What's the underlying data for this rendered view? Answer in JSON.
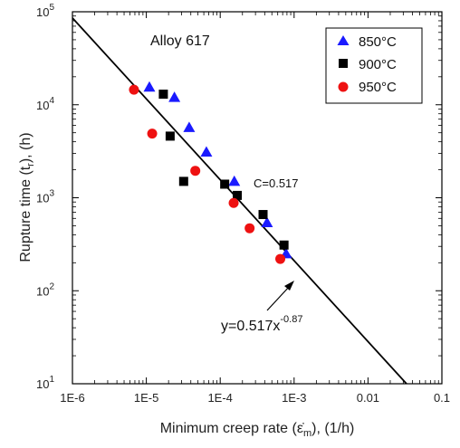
{
  "chart_data": {
    "type": "scatter",
    "x_scale": "log",
    "y_scale": "log",
    "xlim": [
      1e-06,
      0.1
    ],
    "ylim": [
      10,
      100000
    ],
    "x_ticks": [
      {
        "value": 1e-06,
        "label": "1E-6"
      },
      {
        "value": 1e-05,
        "label": "1E-5"
      },
      {
        "value": 0.0001,
        "label": "1E-4"
      },
      {
        "value": 0.001,
        "label": "1E-3"
      },
      {
        "value": 0.01,
        "label": "0.01"
      },
      {
        "value": 0.1,
        "label": "0.1"
      }
    ],
    "y_ticks": [
      {
        "value": 10,
        "base": "10",
        "exp": "1"
      },
      {
        "value": 100,
        "base": "10",
        "exp": "2"
      },
      {
        "value": 1000,
        "base": "10",
        "exp": "3"
      },
      {
        "value": 10000,
        "base": "10",
        "exp": "4"
      },
      {
        "value": 100000,
        "base": "10",
        "exp": "5"
      }
    ],
    "xlabel": {
      "main": "Minimum creep rate (",
      "symbol": "ε̇",
      "sub": "m",
      "tail": "), (1/h)"
    },
    "ylabel": {
      "main": "Rupture time (t",
      "sub": "r",
      "tail": "), (h)"
    },
    "annotations": {
      "alloy": "Alloy 617",
      "c_label": "C=0.517",
      "fit_main": "y=0.517x",
      "fit_exp": "-0.87"
    },
    "fit_line": {
      "coefficient": 0.517,
      "exponent": -0.87,
      "color": "#000000"
    },
    "legend": {
      "position": "top-right",
      "entries": [
        {
          "label": "850°C",
          "marker": "triangle",
          "color": "#1a1aff"
        },
        {
          "label": "900°C",
          "marker": "square",
          "color": "#000000"
        },
        {
          "label": "950°C",
          "marker": "circle",
          "color": "#ee1111"
        }
      ]
    },
    "series": [
      {
        "name": "850°C",
        "marker": "triangle",
        "color": "#1a1aff",
        "points": [
          {
            "x": 1.1e-05,
            "y": 15500
          },
          {
            "x": 2.4e-05,
            "y": 12000
          },
          {
            "x": 3.8e-05,
            "y": 5700
          },
          {
            "x": 6.5e-05,
            "y": 3100
          },
          {
            "x": 0.000155,
            "y": 1500
          },
          {
            "x": 0.00043,
            "y": 540
          },
          {
            "x": 0.00078,
            "y": 250
          }
        ]
      },
      {
        "name": "900°C",
        "marker": "square",
        "color": "#000000",
        "points": [
          {
            "x": 1.7e-05,
            "y": 13000
          },
          {
            "x": 2.1e-05,
            "y": 4600
          },
          {
            "x": 3.2e-05,
            "y": 1500
          },
          {
            "x": 0.000115,
            "y": 1400
          },
          {
            "x": 0.00017,
            "y": 1060
          },
          {
            "x": 0.00038,
            "y": 660
          },
          {
            "x": 0.00073,
            "y": 310
          }
        ]
      },
      {
        "name": "950°C",
        "marker": "circle",
        "color": "#ee1111",
        "points": [
          {
            "x": 6.8e-06,
            "y": 14500
          },
          {
            "x": 1.2e-05,
            "y": 4900
          },
          {
            "x": 4.6e-05,
            "y": 1950
          },
          {
            "x": 0.000152,
            "y": 880
          },
          {
            "x": 0.00025,
            "y": 470
          },
          {
            "x": 0.00065,
            "y": 220
          }
        ]
      }
    ]
  }
}
